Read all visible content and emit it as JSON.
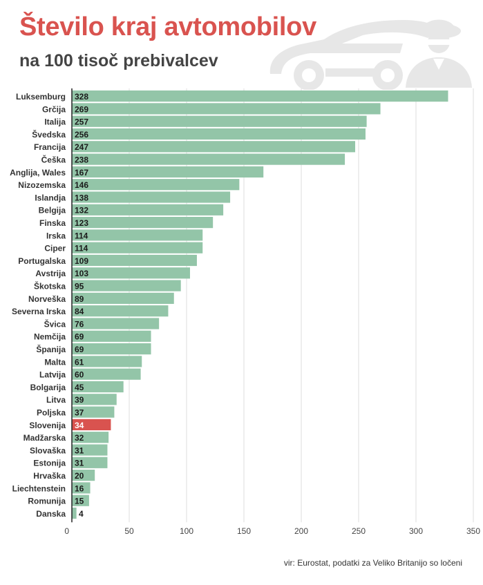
{
  "title": "Število kraj avtomobilov",
  "subtitle": "na 100 tisoč prebivalcev",
  "source": "vir: Eurostat, podatki za Veliko Britanijo so ločeni",
  "colors": {
    "bar": "#93c5a8",
    "highlight": "#d9534f",
    "title": "#d9534f",
    "illustration": "#e7e7e7"
  },
  "illustration_icons": [
    "car-icon",
    "thief-icon"
  ],
  "chart_data": {
    "type": "bar",
    "orientation": "horizontal",
    "title": "Število kraj avtomobilov",
    "subtitle": "na 100 tisoč prebivalcev",
    "categories": [
      "Luksemburg",
      "Grčija",
      "Italija",
      "Švedska",
      "Francija",
      "Češka",
      "Anglija, Wales",
      "Nizozemska",
      "Islandja",
      "Belgija",
      "Finska",
      "Irska",
      "Ciper",
      "Portugalska",
      "Avstrija",
      "Škotska",
      "Norveška",
      "Severna Irska",
      "Švica",
      "Nemčija",
      "Španija",
      "Malta",
      "Latvija",
      "Bolgarija",
      "Litva",
      "Poljska",
      "Slovenija",
      "Madžarska",
      "Slovaška",
      "Estonija",
      "Hrvaška",
      "Liechtenstein",
      "Romunija",
      "Danska"
    ],
    "values": [
      328,
      269,
      257,
      256,
      247,
      238,
      167,
      146,
      138,
      132,
      123,
      114,
      114,
      109,
      103,
      95,
      89,
      84,
      76,
      69,
      69,
      61,
      60,
      45,
      39,
      37,
      34,
      32,
      31,
      31,
      20,
      16,
      15,
      4
    ],
    "highlight": "Slovenija",
    "x_ticks": [
      0,
      50,
      100,
      150,
      200,
      250,
      300,
      350
    ],
    "xlim": [
      0,
      350
    ],
    "grid": true
  }
}
